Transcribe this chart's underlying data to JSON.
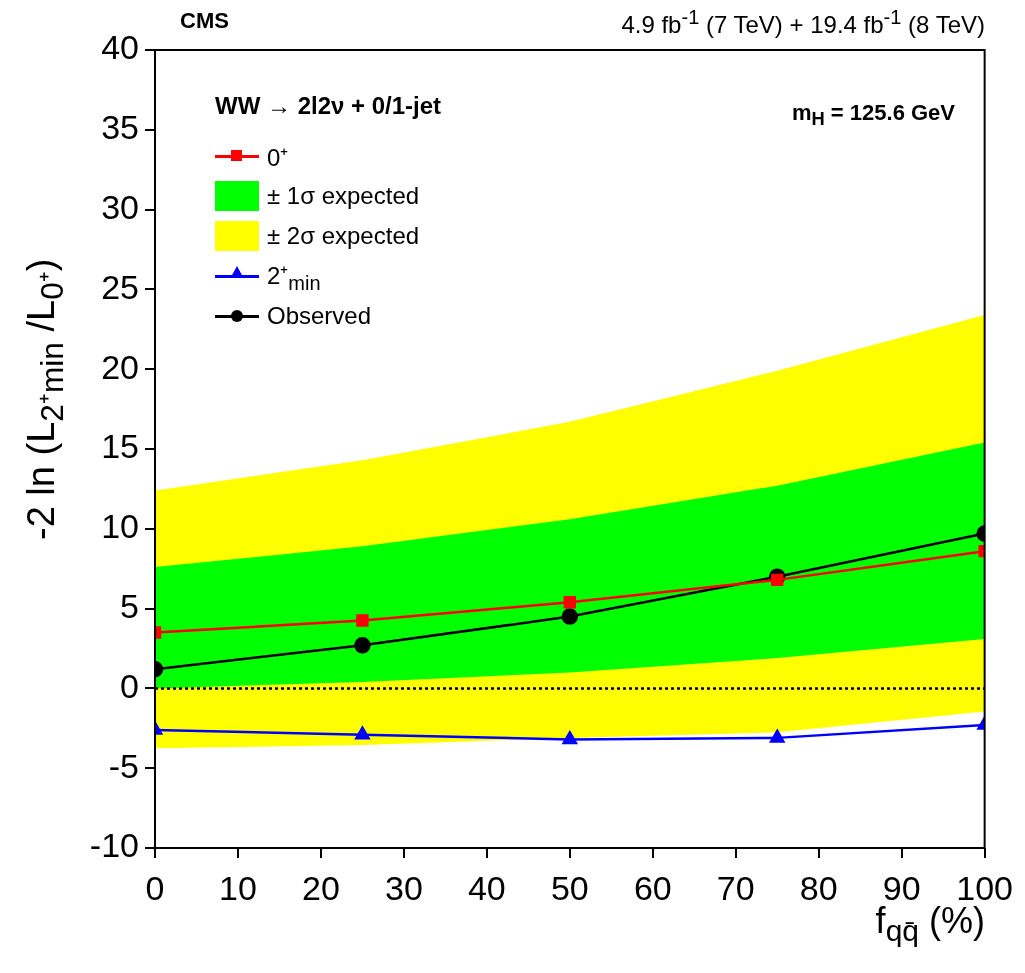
{
  "chart_data": {
    "type": "line",
    "x": [
      0,
      25,
      50,
      75,
      100
    ],
    "xlim": [
      0,
      100
    ],
    "xticks": [
      0,
      10,
      20,
      30,
      40,
      50,
      60,
      70,
      80,
      90,
      100
    ],
    "ylim": [
      -10,
      40
    ],
    "yticks": [
      -10,
      -5,
      0,
      5,
      10,
      15,
      20,
      25,
      30,
      35,
      40
    ],
    "xlabel": "f$_{qq̄}$ (%)",
    "ylabel": "-2 ln (L$_{2⁺min}$ /L$_{0⁺}$)",
    "legend": "top left",
    "legend_title": "WW → 2l2ν + 0/1-jet",
    "series": [
      {
        "name": "0⁺",
        "color": "#ff0000",
        "marker": "square",
        "values": [
          3.5,
          4.25,
          5.4,
          6.8,
          8.6
        ]
      },
      {
        "name": "± 1σ expected",
        "type": "area",
        "color": "#00ff00",
        "values": [
          null,
          null,
          null,
          null,
          null
        ],
        "lower": [
          0,
          0.4,
          1,
          1.9,
          3.1
        ],
        "upper": [
          7.6,
          8.9,
          10.6,
          12.7,
          15.4
        ]
      },
      {
        "name": "± 2σ expected",
        "type": "area",
        "color": "#ffff00",
        "values": [
          null,
          null,
          null,
          null,
          null
        ],
        "lower": [
          -3.75,
          -3.55,
          -3.1,
          -2.75,
          -1.45
        ],
        "upper": [
          12.4,
          14.3,
          16.7,
          19.9,
          23.4
        ]
      },
      {
        "name": "2⁺$_{min}$",
        "color": "#0000ff",
        "marker": "triangle",
        "values": [
          -2.6,
          -2.9,
          -3.2,
          -3.1,
          -2.3
        ]
      },
      {
        "name": "Observed",
        "color": "#000000",
        "marker": "circle",
        "values": [
          1.2,
          2.7,
          4.5,
          7.0,
          9.7
        ]
      }
    ],
    "ref_lines": [
      {
        "axis": "y",
        "value": 0,
        "color": "#000000",
        "line_style": "dotted"
      }
    ],
    "annotations": [
      "CMS",
      "4.9 fb$^{-1}$ (7 TeV) + 19.4 fb$^{-1}$ (8 TeV)",
      "m$_{H}$ = 125.6 GeV"
    ]
  }
}
